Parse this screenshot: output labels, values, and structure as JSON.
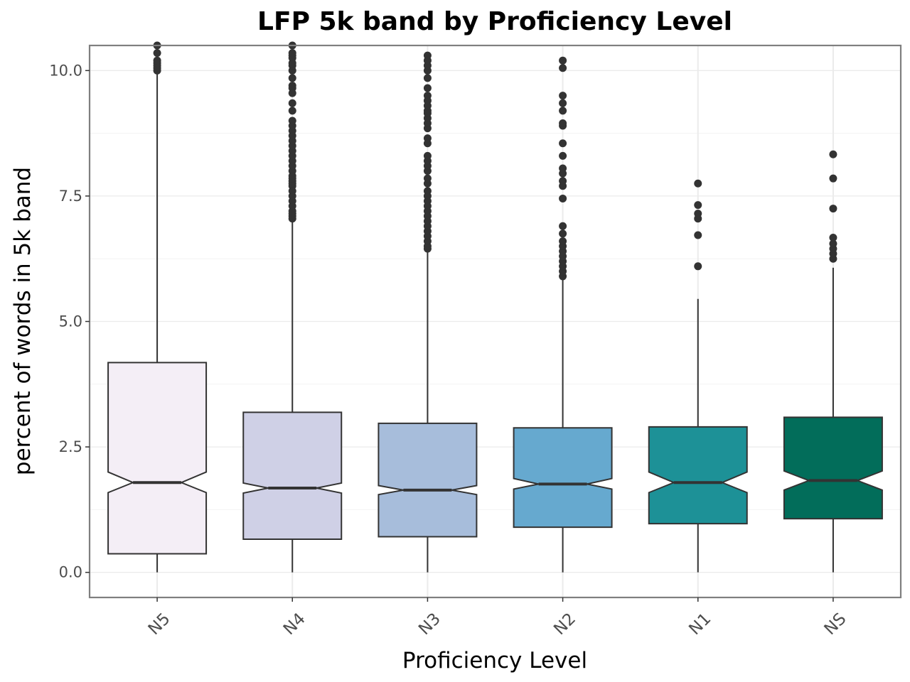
{
  "chart_data": {
    "type": "boxplot",
    "notched": true,
    "title": "LFP 5k band by Proficiency Level",
    "xlabel": "Proficiency Level",
    "ylabel": "percent of words in 5k band",
    "ylim": [
      -0.5,
      10.5
    ],
    "yticks": [
      0.0,
      2.5,
      5.0,
      7.5,
      10.0
    ],
    "ytick_labels": [
      "0.0",
      "2.5",
      "5.0",
      "7.5",
      "10.0"
    ],
    "grid": true,
    "categories": [
      "N5",
      "N4",
      "N3",
      "N2",
      "N1",
      "NS"
    ],
    "boxes": [
      {
        "category": "N5",
        "color": "#f4eef6",
        "min": 0.0,
        "q1": 0.37,
        "median": 1.79,
        "q3": 4.18,
        "max": 9.95,
        "notch_low": 1.59,
        "notch_high": 2.0,
        "outliers": [
          10.0,
          10.05,
          10.1,
          10.15,
          10.2,
          10.35,
          10.5
        ]
      },
      {
        "category": "N4",
        "color": "#cfd0e6",
        "min": 0.0,
        "q1": 0.66,
        "median": 1.68,
        "q3": 3.19,
        "max": 7.0,
        "notch_low": 1.58,
        "notch_high": 1.78,
        "outliers": [
          7.05,
          7.1,
          7.15,
          7.2,
          7.3,
          7.4,
          7.5,
          7.6,
          7.7,
          7.75,
          7.8,
          7.85,
          7.9,
          8.0,
          8.1,
          8.2,
          8.3,
          8.4,
          8.5,
          8.6,
          8.7,
          8.8,
          8.9,
          9.0,
          9.2,
          9.35,
          9.55,
          9.65,
          9.7,
          9.85,
          10.0,
          10.1,
          10.15,
          10.25,
          10.3,
          10.35,
          10.5
        ]
      },
      {
        "category": "N3",
        "color": "#a7bddb",
        "min": 0.0,
        "q1": 0.71,
        "median": 1.64,
        "q3": 2.97,
        "max": 6.4,
        "notch_low": 1.55,
        "notch_high": 1.73,
        "outliers": [
          6.45,
          6.5,
          6.6,
          6.7,
          6.8,
          6.9,
          7.0,
          7.1,
          7.2,
          7.3,
          7.4,
          7.5,
          7.6,
          7.75,
          7.85,
          8.0,
          8.1,
          8.2,
          8.3,
          8.55,
          8.65,
          8.85,
          8.95,
          9.05,
          9.15,
          9.2,
          9.3,
          9.4,
          9.5,
          9.65,
          9.85,
          10.0,
          10.1,
          10.2,
          10.3
        ]
      },
      {
        "category": "N2",
        "color": "#66a9cf",
        "min": 0.0,
        "q1": 0.9,
        "median": 1.76,
        "q3": 2.88,
        "max": 5.85,
        "notch_low": 1.66,
        "notch_high": 1.87,
        "outliers": [
          5.9,
          6.0,
          6.1,
          6.2,
          6.3,
          6.4,
          6.5,
          6.6,
          6.75,
          6.9,
          7.45,
          7.7,
          7.8,
          7.95,
          8.05,
          8.3,
          8.55,
          8.9,
          8.95,
          9.2,
          9.35,
          9.5,
          10.05,
          10.2
        ]
      },
      {
        "category": "N1",
        "color": "#1d9197",
        "min": 0.0,
        "q1": 0.97,
        "median": 1.79,
        "q3": 2.9,
        "max": 5.45,
        "notch_low": 1.59,
        "notch_high": 2.0,
        "outliers": [
          6.1,
          6.72,
          7.05,
          7.15,
          7.32,
          7.75
        ]
      },
      {
        "category": "NS",
        "color": "#026d5a",
        "min": 0.0,
        "q1": 1.07,
        "median": 1.83,
        "q3": 3.09,
        "max": 6.07,
        "notch_low": 1.64,
        "notch_high": 2.02,
        "outliers": [
          6.25,
          6.35,
          6.45,
          6.55,
          6.67,
          7.25,
          7.85,
          8.33
        ]
      }
    ]
  }
}
